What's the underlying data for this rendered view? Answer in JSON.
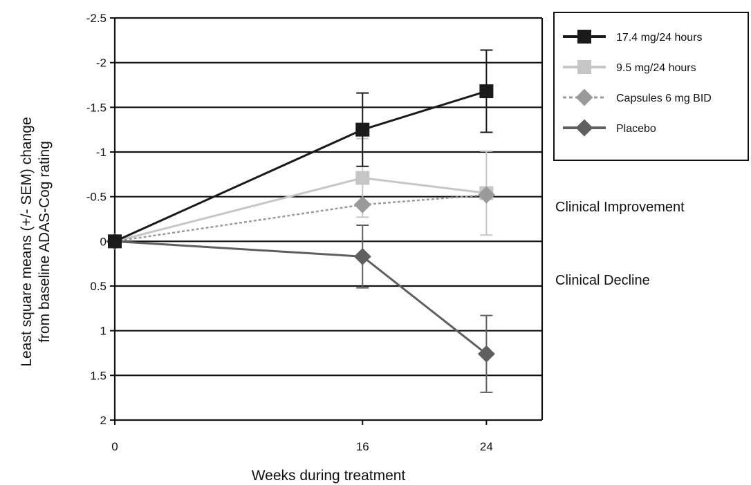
{
  "chart_data": {
    "type": "line",
    "x": [
      0,
      16,
      24
    ],
    "xlabel": "Weeks during treatment",
    "ylabel_lines": [
      "Least square means (+/- SEM) change",
      "from baseline ADAS-Cog rating"
    ],
    "y_ticks": [
      "-2.5",
      "-2",
      "-1.5",
      "-1",
      "-0.5",
      "0",
      "0.5",
      "1",
      "1.5",
      "2"
    ],
    "x_ticks": [
      "0",
      "16",
      "24"
    ],
    "ylim": [
      -2.5,
      2
    ],
    "y_inverted": true,
    "grid": true,
    "legend_position": "top-right",
    "series": [
      {
        "name": "17.4 mg/24 hours",
        "color": "#1a1a1a",
        "marker": "square",
        "dash": "solid",
        "values": [
          0,
          -1.25,
          -1.68
        ],
        "err": [
          0,
          0.41,
          0.46
        ]
      },
      {
        "name": "9.5 mg/24 hours",
        "color": "#c6c6c6",
        "marker": "square",
        "dash": "solid",
        "values": [
          0,
          -0.71,
          -0.54
        ],
        "err": [
          0,
          0.44,
          0.47
        ]
      },
      {
        "name": "Capsules 6 mg BID",
        "color": "#9a9a9a",
        "marker": "diamond",
        "dash": "dotted",
        "values": [
          0,
          -0.41,
          -0.52
        ],
        "err": [
          0,
          0,
          0
        ]
      },
      {
        "name": "Placebo",
        "color": "#5f5f5f",
        "marker": "diamond",
        "dash": "solid",
        "values": [
          0,
          0.17,
          1.26
        ],
        "err": [
          0,
          0.35,
          0.43
        ]
      }
    ],
    "annotations": [
      "Clinical Improvement",
      "Clinical Decline"
    ]
  }
}
